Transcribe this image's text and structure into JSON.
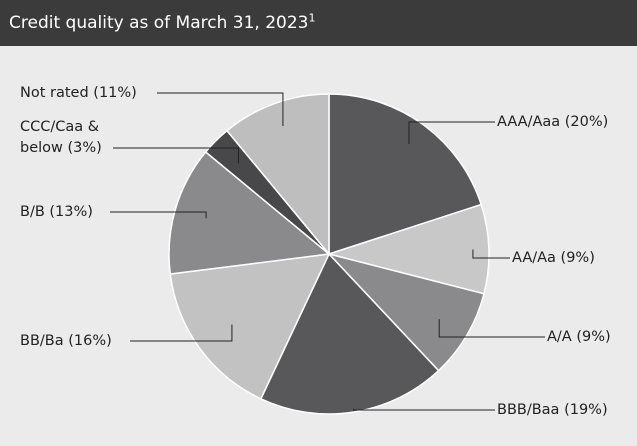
{
  "chart_data": {
    "type": "pie",
    "title": "Credit quality as of March 31, 2023",
    "title_footnote": "1",
    "categories": [
      "AAA/Aaa",
      "AA/Aa",
      "A/A",
      "BBB/Baa",
      "BB/Ba",
      "B/B",
      "CCC/Caa & below",
      "Not rated"
    ],
    "values": [
      20,
      9,
      9,
      19,
      16,
      13,
      3,
      11
    ],
    "value_labels": [
      "(20%)",
      "(9%)",
      "(9%)",
      "(19%)",
      "(16%)",
      "(13%)",
      "(3%)",
      "(11%)"
    ],
    "colors": [
      "#58585a",
      "#c8c8c8",
      "#8a8a8c",
      "#58585a",
      "#c2c2c2",
      "#8a8a8c",
      "#48484a",
      "#bebebe"
    ]
  }
}
